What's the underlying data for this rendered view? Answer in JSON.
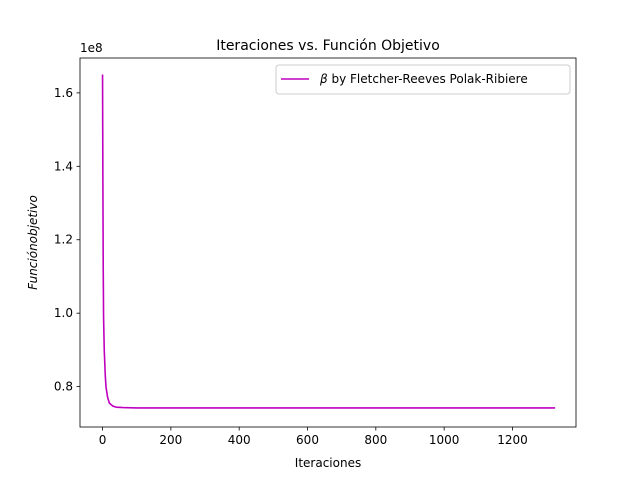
{
  "chart_data": {
    "type": "line",
    "title": "Iteraciones vs. Función Objetivo",
    "xlabel": "Iteraciones",
    "ylabel": "Funciónobjetivo",
    "y_offset_label": "1e8",
    "xlim": [
      -66,
      1386
    ],
    "ylim": [
      0.69,
      1.695
    ],
    "xticks": [
      0,
      200,
      400,
      600,
      800,
      1000,
      1200
    ],
    "xtick_labels": [
      "0",
      "200",
      "400",
      "600",
      "800",
      "1000",
      "1200"
    ],
    "yticks": [
      0.8,
      1.0,
      1.2,
      1.4,
      1.6
    ],
    "ytick_labels": [
      "0.8",
      "1.0",
      "1.2",
      "1.4",
      "1.6"
    ],
    "grid": false,
    "legend_position": "top-right",
    "series": [
      {
        "name": "β by Fletcher-Reeves Polak-Ribiere",
        "legend_symbol": "β",
        "legend_text": " by Fletcher-Reeves Polak-Ribiere",
        "color": "#bf00bf",
        "x": [
          0,
          1,
          2,
          3,
          5,
          8,
          10,
          15,
          20,
          30,
          40,
          60,
          100,
          200,
          400,
          600,
          800,
          1000,
          1200,
          1325
        ],
        "y": [
          1.65,
          1.36,
          1.12,
          0.99,
          0.9,
          0.83,
          0.8,
          0.77,
          0.755,
          0.747,
          0.744,
          0.743,
          0.742,
          0.742,
          0.742,
          0.742,
          0.742,
          0.742,
          0.742,
          0.742
        ]
      }
    ]
  }
}
